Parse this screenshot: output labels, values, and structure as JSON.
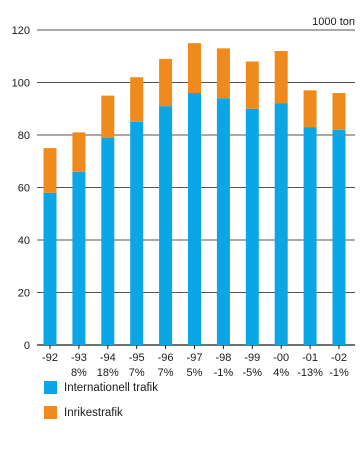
{
  "chart_data": {
    "type": "bar",
    "stacked": true,
    "unit_label": "1000 ton",
    "categories": [
      "-92",
      "-93",
      "-94",
      "-95",
      "-96",
      "-97",
      "-98",
      "-99",
      "-00",
      "-01",
      "-02"
    ],
    "change_labels": [
      "",
      "8%",
      "18%",
      "7%",
      "7%",
      "5%",
      "-1%",
      "-5%",
      "4%",
      "-13%",
      "-1%"
    ],
    "series": [
      {
        "name": "Internationell trafik",
        "color": "#0aa6e6",
        "values": [
          58,
          66,
          79,
          85,
          91,
          96,
          94,
          90,
          92,
          83,
          82
        ]
      },
      {
        "name": "Inrikestrafik",
        "color": "#f08a1c",
        "values": [
          17,
          15,
          16,
          17,
          18,
          19,
          19,
          18,
          20,
          14,
          14
        ]
      }
    ],
    "ylim": [
      0,
      120
    ],
    "yticks": [
      0,
      20,
      40,
      60,
      80,
      100,
      120
    ],
    "grid": true,
    "legend_position": "bottom"
  }
}
